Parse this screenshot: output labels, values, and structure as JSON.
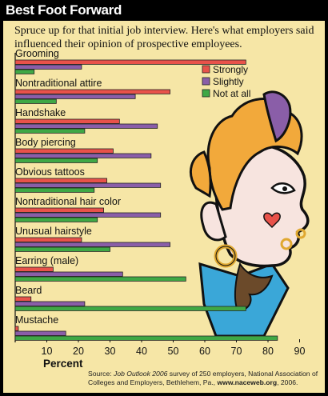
{
  "header": {
    "title": "Best Foot Forward"
  },
  "subtitle": "Spruce up for that initial job interview. Here's what employers said influenced their opinion of prospective employees.",
  "source": {
    "prefix": "Source: ",
    "italic": "Job Outlook 2006",
    "rest": " survey of 250 employers, National Association of Colleges and Employers, Bethlehem, Pa., ",
    "bold": "www.naceweb.org",
    "suffix": ", 2006."
  },
  "colors": {
    "strongly": "#e8524a",
    "slightly": "#8a5ea8",
    "not_at_all": "#3fa845",
    "background": "#f6e6a6"
  },
  "chart_data": {
    "type": "bar",
    "orientation": "horizontal",
    "xlabel": "Percent",
    "xlim": [
      0,
      95
    ],
    "xticks": [
      10,
      20,
      30,
      40,
      50,
      60,
      70,
      80,
      90
    ],
    "categories": [
      "Grooming",
      "Nontraditional attire",
      "Handshake",
      "Body piercing",
      "Obvious tattoos",
      "Nontraditional hair color",
      "Unusual hairstyle",
      "Earring (male)",
      "Beard",
      "Mustache"
    ],
    "series": [
      {
        "name": "Strongly",
        "color": "#e8524a",
        "values": [
          73,
          49,
          33,
          31,
          29,
          28,
          21,
          12,
          5,
          1
        ]
      },
      {
        "name": "Slightly",
        "color": "#8a5ea8",
        "values": [
          21,
          38,
          45,
          43,
          46,
          46,
          49,
          34,
          22,
          16
        ]
      },
      {
        "name": "Not at all",
        "color": "#3fa845",
        "values": [
          6,
          13,
          22,
          26,
          25,
          26,
          30,
          54,
          73,
          83
        ]
      }
    ],
    "legend_position": "right"
  }
}
